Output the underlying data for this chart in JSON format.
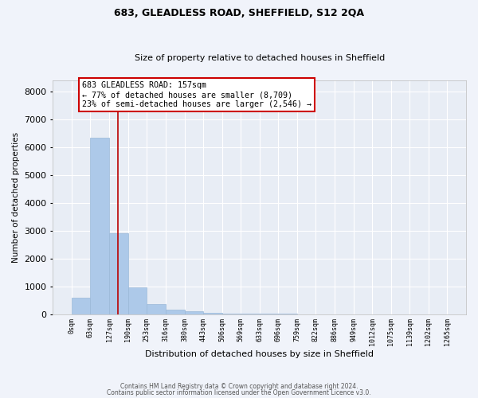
{
  "title1": "683, GLEADLESS ROAD, SHEFFIELD, S12 2QA",
  "title2": "Size of property relative to detached houses in Sheffield",
  "xlabel": "Distribution of detached houses by size in Sheffield",
  "ylabel": "Number of detached properties",
  "bar_color": "#adc9e9",
  "bar_edge_color": "#9ab8d8",
  "bg_color": "#e8edf5",
  "grid_color": "#ffffff",
  "fig_bg_color": "#f0f3fa",
  "vline_x": 157,
  "vline_color": "#bb0000",
  "annotation_line1": "683 GLEADLESS ROAD: 157sqm",
  "annotation_line2": "← 77% of detached houses are smaller (8,709)",
  "annotation_line3": "23% of semi-detached houses are larger (2,546) →",
  "annotation_box_color": "#cc0000",
  "bin_edges": [
    0,
    63,
    127,
    190,
    253,
    316,
    380,
    443,
    506,
    569,
    633,
    696,
    759,
    822,
    886,
    949,
    1012,
    1075,
    1139,
    1202,
    1265
  ],
  "bar_heights": [
    575,
    6350,
    2900,
    975,
    350,
    155,
    90,
    55,
    15,
    8,
    5,
    3,
    2,
    1,
    1,
    0,
    0,
    0,
    0,
    0
  ],
  "ylim": [
    0,
    8400
  ],
  "yticks": [
    0,
    1000,
    2000,
    3000,
    4000,
    5000,
    6000,
    7000,
    8000
  ],
  "footer1": "Contains HM Land Registry data © Crown copyright and database right 2024.",
  "footer2": "Contains public sector information licensed under the Open Government Licence v3.0."
}
